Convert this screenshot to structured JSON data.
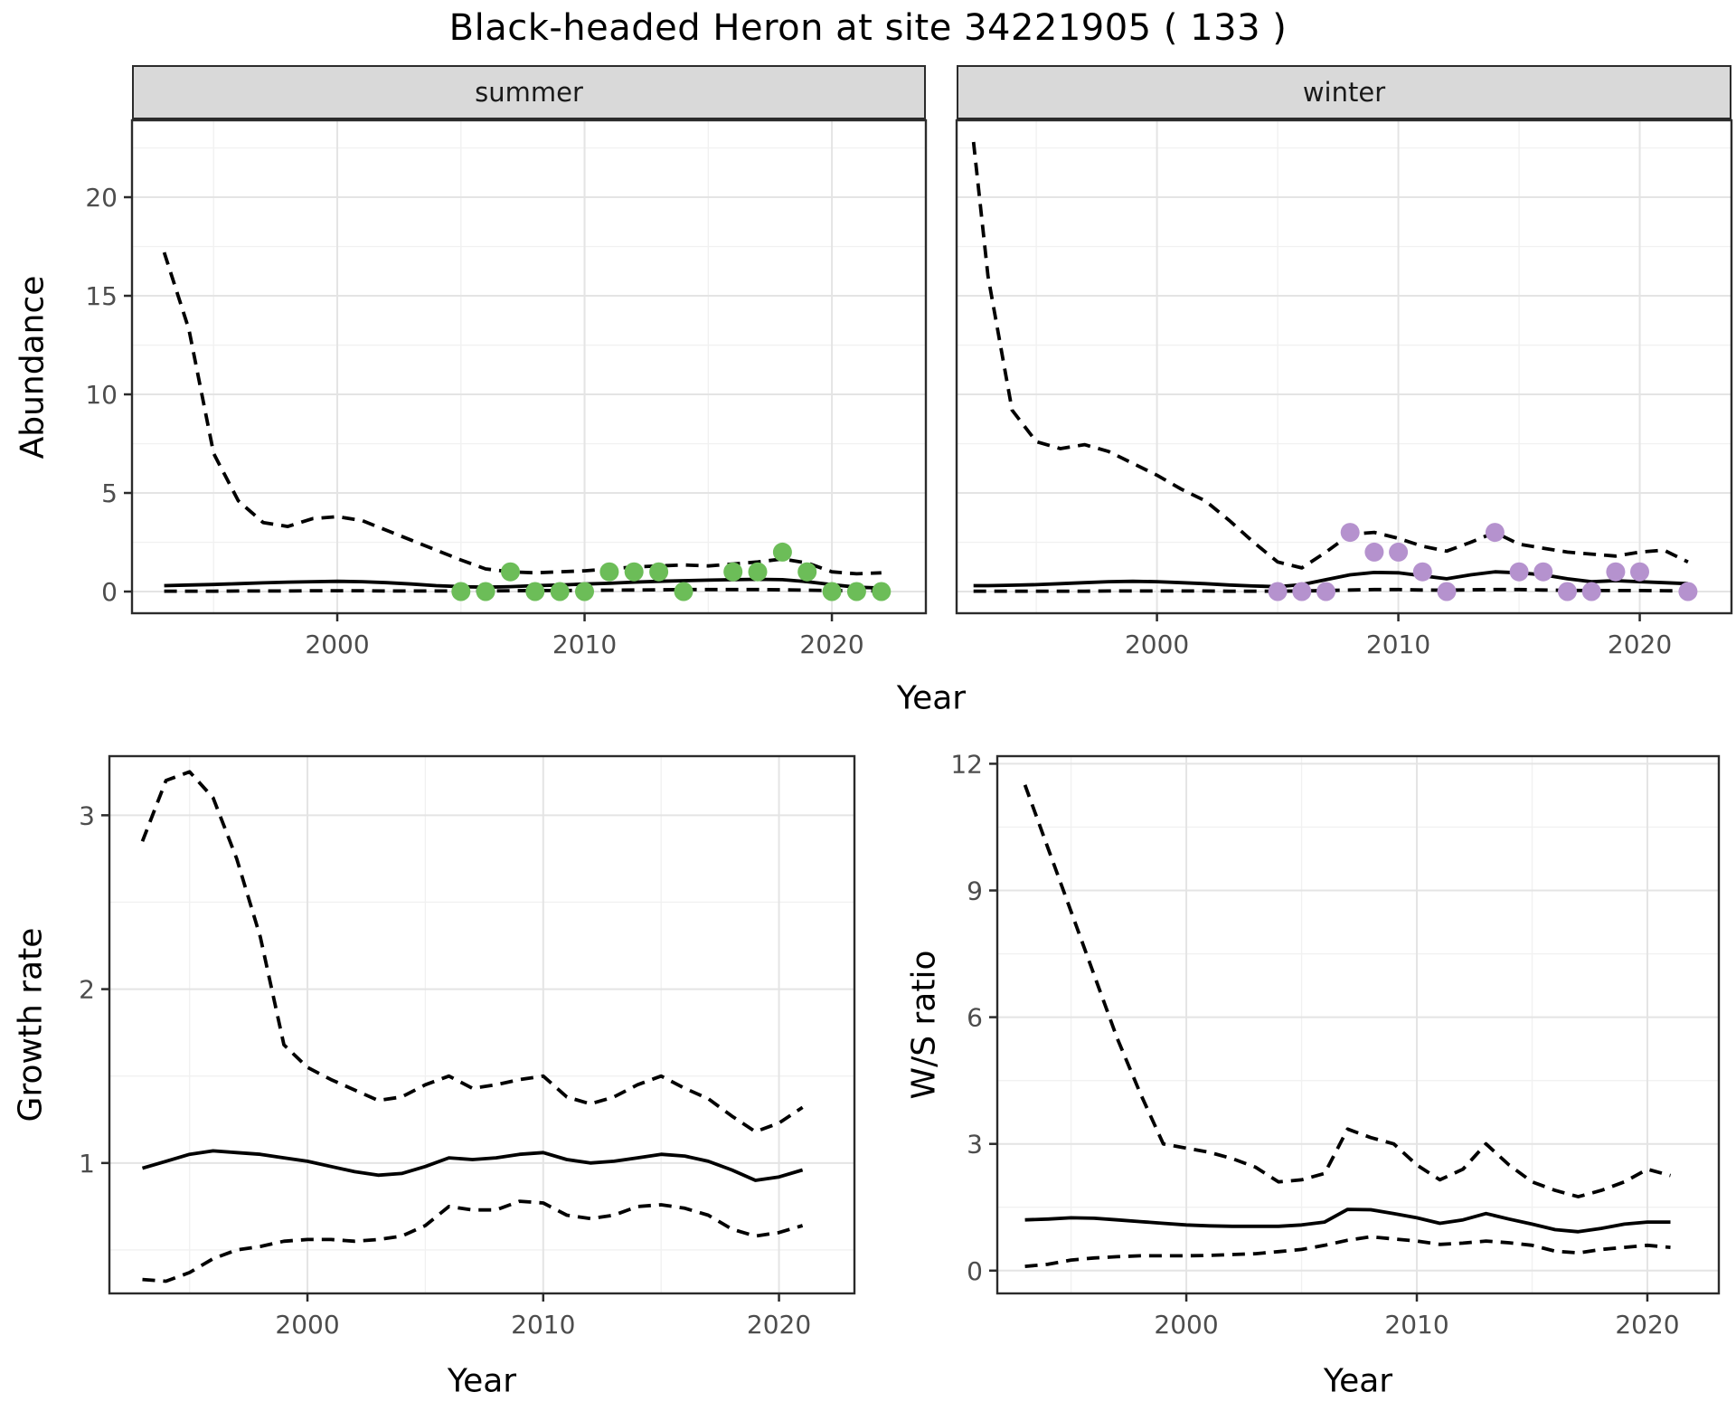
{
  "title": "Black-headed Heron at site 34221905 ( 133 )",
  "colors": {
    "summer_point": "#6cbd58",
    "winter_point": "#b592ce",
    "line": "#000000",
    "grid_major": "#e4e4e4",
    "grid_minor": "#f1f1f1",
    "strip_bg": "#d9d9d9",
    "panel_border": "#2b2b2b",
    "tick_text": "#4d4d4d"
  },
  "chart_data": [
    {
      "id": "abundance",
      "type": "line",
      "ylabel": "Abundance",
      "xlabel": "Year",
      "yticks": [
        0,
        5,
        10,
        15,
        20
      ],
      "xticks": [
        2000,
        2010,
        2020
      ],
      "ylim": [
        -1.1,
        23.9
      ],
      "xlim": [
        1991.7,
        2023.8
      ],
      "grid": "major+minor",
      "facets": [
        {
          "label": "summer",
          "point_color": "#6cbd58",
          "x": [
            1993,
            1994,
            1995,
            1996,
            1997,
            1998,
            1999,
            2000,
            2001,
            2002,
            2003,
            2004,
            2005,
            2006,
            2007,
            2008,
            2009,
            2010,
            2011,
            2012,
            2013,
            2014,
            2015,
            2016,
            2017,
            2018,
            2019,
            2020,
            2021,
            2022
          ],
          "series": [
            {
              "name": "upper_ci",
              "style": "dashed",
              "values": [
                17.2,
                13.3,
                7.0,
                4.6,
                3.5,
                3.3,
                3.7,
                3.8,
                3.6,
                3.1,
                2.6,
                2.1,
                1.6,
                1.15,
                1.0,
                0.95,
                1.0,
                1.05,
                1.15,
                1.25,
                1.3,
                1.35,
                1.3,
                1.4,
                1.5,
                1.65,
                1.45,
                1.0,
                0.9,
                0.95
              ]
            },
            {
              "name": "median",
              "style": "solid",
              "values": [
                0.3,
                0.33,
                0.36,
                0.4,
                0.44,
                0.48,
                0.5,
                0.52,
                0.5,
                0.45,
                0.38,
                0.3,
                0.25,
                0.22,
                0.25,
                0.3,
                0.33,
                0.38,
                0.42,
                0.48,
                0.52,
                0.55,
                0.58,
                0.6,
                0.62,
                0.6,
                0.5,
                0.35,
                0.22,
                0.18
              ]
            },
            {
              "name": "lower_ci",
              "style": "dashed",
              "values": [
                0.02,
                0.02,
                0.02,
                0.03,
                0.03,
                0.03,
                0.04,
                0.04,
                0.04,
                0.03,
                0.03,
                0.03,
                0.03,
                0.03,
                0.04,
                0.05,
                0.05,
                0.06,
                0.07,
                0.08,
                0.09,
                0.1,
                0.1,
                0.1,
                0.1,
                0.09,
                0.07,
                0.05,
                0.04,
                0.03
              ]
            }
          ],
          "observed": {
            "x": [
              2005,
              2006,
              2007,
              2008,
              2009,
              2010,
              2011,
              2012,
              2013,
              2014,
              2016,
              2017,
              2018,
              2019,
              2020,
              2021,
              2022
            ],
            "y": [
              0,
              0,
              1,
              0,
              0,
              0,
              1,
              1,
              1,
              0,
              1,
              1,
              2,
              1,
              0,
              0,
              0
            ]
          }
        },
        {
          "label": "winter",
          "point_color": "#b592ce",
          "x": [
            1992.4,
            1993,
            1994,
            1995,
            1996,
            1997,
            1998,
            1999,
            2000,
            2001,
            2002,
            2003,
            2004,
            2005,
            2006,
            2007,
            2008,
            2009,
            2010,
            2011,
            2012,
            2013,
            2014,
            2015,
            2016,
            2017,
            2018,
            2019,
            2020,
            2021,
            2022
          ],
          "series": [
            {
              "name": "upper_ci",
              "style": "dashed",
              "values": [
                22.8,
                16.0,
                9.2,
                7.6,
                7.25,
                7.45,
                7.1,
                6.5,
                5.9,
                5.2,
                4.6,
                3.6,
                2.5,
                1.5,
                1.2,
                2.0,
                2.9,
                3.0,
                2.7,
                2.3,
                2.05,
                2.5,
                3.0,
                2.4,
                2.2,
                2.0,
                1.9,
                1.8,
                2.0,
                2.1,
                1.5
              ]
            },
            {
              "name": "median",
              "style": "solid",
              "values": [
                0.3,
                0.3,
                0.32,
                0.35,
                0.4,
                0.45,
                0.5,
                0.52,
                0.5,
                0.45,
                0.4,
                0.33,
                0.28,
                0.25,
                0.35,
                0.6,
                0.85,
                0.97,
                0.95,
                0.8,
                0.65,
                0.85,
                1.0,
                0.95,
                0.85,
                0.65,
                0.5,
                0.55,
                0.5,
                0.45,
                0.4
              ]
            },
            {
              "name": "lower_ci",
              "style": "dashed",
              "values": [
                0.02,
                0.02,
                0.02,
                0.02,
                0.02,
                0.02,
                0.03,
                0.03,
                0.03,
                0.03,
                0.03,
                0.02,
                0.02,
                0.02,
                0.03,
                0.05,
                0.08,
                0.1,
                0.1,
                0.08,
                0.07,
                0.09,
                0.1,
                0.1,
                0.08,
                0.06,
                0.05,
                0.05,
                0.05,
                0.04,
                0.03
              ]
            }
          ],
          "observed": {
            "x": [
              2005,
              2006,
              2007,
              2008,
              2009,
              2010,
              2011,
              2012,
              2014,
              2015,
              2016,
              2017,
              2018,
              2019,
              2020,
              2022
            ],
            "y": [
              0,
              0,
              0,
              3,
              2,
              2,
              1,
              0,
              3,
              1,
              1,
              0,
              0,
              1,
              1,
              0
            ]
          }
        }
      ]
    },
    {
      "id": "growth-rate",
      "type": "line",
      "ylabel": "Growth rate",
      "xlabel": "Year",
      "yticks": [
        1,
        2,
        3
      ],
      "xticks": [
        2000,
        2010,
        2020
      ],
      "ylim": [
        0.25,
        3.34
      ],
      "xlim": [
        1991.6,
        2023.2
      ],
      "grid": "major+minor",
      "x": [
        1993,
        1994,
        1995,
        1996,
        1997,
        1998,
        1999,
        2000,
        2001,
        2002,
        2003,
        2004,
        2005,
        2006,
        2007,
        2008,
        2009,
        2010,
        2011,
        2012,
        2013,
        2014,
        2015,
        2016,
        2017,
        2018,
        2019,
        2020,
        2021
      ],
      "series": [
        {
          "name": "upper_ci",
          "style": "dashed",
          "values": [
            2.85,
            3.2,
            3.25,
            3.1,
            2.75,
            2.3,
            1.68,
            1.55,
            1.48,
            1.42,
            1.36,
            1.38,
            1.45,
            1.5,
            1.43,
            1.45,
            1.48,
            1.5,
            1.38,
            1.34,
            1.38,
            1.45,
            1.5,
            1.43,
            1.37,
            1.27,
            1.18,
            1.23,
            1.32
          ]
        },
        {
          "name": "median",
          "style": "solid",
          "values": [
            0.97,
            1.01,
            1.05,
            1.07,
            1.06,
            1.05,
            1.03,
            1.01,
            0.98,
            0.95,
            0.93,
            0.94,
            0.98,
            1.03,
            1.02,
            1.03,
            1.05,
            1.06,
            1.02,
            1.0,
            1.01,
            1.03,
            1.05,
            1.04,
            1.01,
            0.96,
            0.9,
            0.92,
            0.96
          ]
        },
        {
          "name": "lower_ci",
          "style": "dashed",
          "values": [
            0.33,
            0.32,
            0.37,
            0.45,
            0.5,
            0.52,
            0.55,
            0.56,
            0.56,
            0.55,
            0.56,
            0.58,
            0.64,
            0.75,
            0.73,
            0.73,
            0.78,
            0.77,
            0.7,
            0.68,
            0.7,
            0.75,
            0.76,
            0.74,
            0.7,
            0.62,
            0.58,
            0.6,
            0.64
          ]
        }
      ]
    },
    {
      "id": "ws-ratio",
      "type": "line",
      "ylabel": "W/S ratio",
      "xlabel": "Year",
      "yticks": [
        0,
        3,
        6,
        9,
        12
      ],
      "xticks": [
        2000,
        2010,
        2020
      ],
      "ylim": [
        -0.54,
        12.18
      ],
      "xlim": [
        1991.8,
        2023.1
      ],
      "grid": "major+minor",
      "x": [
        1993,
        1994,
        1995,
        1996,
        1997,
        1998,
        1999,
        2000,
        2001,
        2002,
        2003,
        2004,
        2005,
        2006,
        2007,
        2008,
        2009,
        2010,
        2011,
        2012,
        2013,
        2014,
        2015,
        2016,
        2017,
        2018,
        2019,
        2020,
        2021
      ],
      "series": [
        {
          "name": "upper_ci",
          "style": "dashed",
          "values": [
            11.5,
            10.0,
            8.5,
            7.0,
            5.5,
            4.2,
            3.0,
            2.9,
            2.8,
            2.65,
            2.45,
            2.1,
            2.15,
            2.3,
            3.35,
            3.15,
            3.0,
            2.5,
            2.15,
            2.4,
            3.0,
            2.5,
            2.1,
            1.9,
            1.75,
            1.9,
            2.1,
            2.4,
            2.25
          ]
        },
        {
          "name": "median",
          "style": "solid",
          "values": [
            1.2,
            1.22,
            1.25,
            1.24,
            1.2,
            1.16,
            1.12,
            1.08,
            1.06,
            1.05,
            1.05,
            1.05,
            1.08,
            1.15,
            1.45,
            1.44,
            1.35,
            1.25,
            1.12,
            1.2,
            1.35,
            1.22,
            1.1,
            0.97,
            0.92,
            1.0,
            1.1,
            1.15,
            1.15
          ]
        },
        {
          "name": "lower_ci",
          "style": "dashed",
          "values": [
            0.1,
            0.15,
            0.25,
            0.3,
            0.33,
            0.35,
            0.35,
            0.35,
            0.36,
            0.38,
            0.4,
            0.45,
            0.5,
            0.6,
            0.72,
            0.8,
            0.75,
            0.7,
            0.62,
            0.65,
            0.7,
            0.66,
            0.6,
            0.46,
            0.42,
            0.5,
            0.55,
            0.6,
            0.55
          ]
        }
      ]
    }
  ]
}
